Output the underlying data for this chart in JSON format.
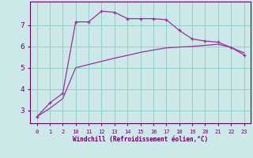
{
  "xlabel": "Windchill (Refroidissement éolien,°C)",
  "bg_color": "#cce8e8",
  "line_color": "#993399",
  "grid_color": "#99cccc",
  "axis_color": "#660066",
  "x_upper": [
    0,
    1,
    2,
    3,
    4,
    5,
    6,
    7,
    8,
    9,
    10,
    11,
    12,
    13,
    14,
    15,
    16
  ],
  "y_upper": [
    2.7,
    3.35,
    3.8,
    7.15,
    7.15,
    7.65,
    7.6,
    7.3,
    7.3,
    7.3,
    7.25,
    6.75,
    6.35,
    6.25,
    6.2,
    5.95,
    5.6
  ],
  "x_lower": [
    0,
    1,
    2,
    3,
    4,
    5,
    6,
    7,
    8,
    9,
    10,
    11,
    12,
    13,
    14,
    15,
    16
  ],
  "y_lower": [
    2.7,
    3.1,
    3.55,
    5.0,
    5.15,
    5.3,
    5.45,
    5.58,
    5.72,
    5.83,
    5.93,
    5.97,
    6.0,
    6.05,
    6.1,
    5.95,
    5.7
  ],
  "xtick_positions": [
    0,
    1,
    2,
    3,
    4,
    5,
    6,
    7,
    8,
    9,
    10,
    11,
    12,
    13,
    14,
    15,
    16
  ],
  "xtick_labels": [
    "0",
    "1",
    "2",
    "10",
    "11",
    "12",
    "13",
    "14",
    "15",
    "16",
    "17",
    "18",
    "19",
    "20",
    "21",
    "22",
    "23"
  ],
  "yticks": [
    3,
    4,
    5,
    6,
    7
  ],
  "ylim": [
    2.4,
    8.1
  ],
  "xlim": [
    -0.5,
    16.5
  ]
}
